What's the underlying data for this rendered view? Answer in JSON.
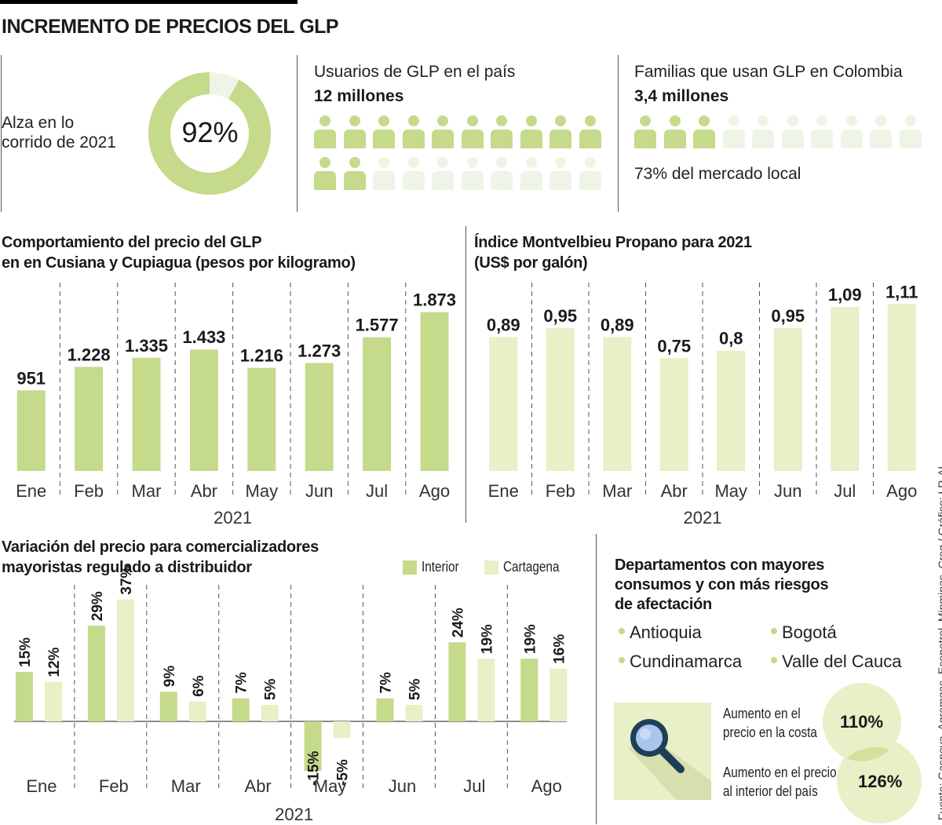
{
  "title": "INCREMENTO DE PRECIOS DEL GLP",
  "colors": {
    "green": "#c5da8a",
    "light_green": "#e9efc6",
    "faded": "#eef4e6",
    "text": "#1a1a1a"
  },
  "summary": {
    "alza": {
      "label_line1": "Alza en lo",
      "label_line2": "corrido de 2021",
      "value_text": "92%",
      "fraction": 0.92
    },
    "usuarios": {
      "label": "Usuarios de GLP en el país",
      "value": "12 millones",
      "icons_total": 20,
      "icons_filled": 12,
      "icon": "person-icon"
    },
    "familias": {
      "label": "Familias que usan GLP en Colombia",
      "value": "3,4 millones",
      "icons_total": 10,
      "icons_filled": 3,
      "icon": "person-icon",
      "note": "73% del mercado local"
    }
  },
  "chart_data": [
    {
      "type": "bar",
      "title": "Comportamiento del precio del GLP en en Cusiana y Cupiagua (pesos por kilogramo)",
      "title_line1": "Comportamiento del precio del GLP",
      "title_line2": "en en Cusiana y Cupiagua (pesos por kilogramo)",
      "categories": [
        "Ene",
        "Feb",
        "Mar",
        "Abr",
        "May",
        "Jun",
        "Jul",
        "Ago"
      ],
      "values": [
        951,
        1228,
        1335,
        1433,
        1216,
        1273,
        1577,
        1873
      ],
      "labels": [
        "951",
        "1.228",
        "1.335",
        "1.433",
        "1.216",
        "1.273",
        "1.577",
        "1.873"
      ],
      "xlabel": "2021",
      "ylabel": "",
      "ylim": [
        0,
        2000
      ],
      "grid": "vertical-dashed-separators",
      "color": "#c5da8a"
    },
    {
      "type": "bar",
      "title": "Índice Montvelbieu Propano para 2021 (US$ por galón)",
      "title_line1": "Índice Montvelbieu Propano para 2021",
      "title_line2": "(US$ por galón)",
      "categories": [
        "Ene",
        "Feb",
        "Mar",
        "Abr",
        "May",
        "Jun",
        "Jul",
        "Ago"
      ],
      "values": [
        0.89,
        0.95,
        0.89,
        0.75,
        0.8,
        0.95,
        1.09,
        1.11
      ],
      "labels": [
        "0,89",
        "0,95",
        "0,89",
        "0,75",
        "0,8",
        "0,95",
        "1,09",
        "1,11"
      ],
      "xlabel": "2021",
      "ylabel": "",
      "ylim": [
        0,
        1.2
      ],
      "grid": "vertical-dashed-separators",
      "color": "#e9efc6"
    },
    {
      "type": "bar",
      "title": "Variación del precio para comercializadores mayoristas regulado a distribuidor",
      "title_line1": "Variación del precio para comercializadores",
      "title_line2": "mayoristas regulado a distribuidor",
      "categories": [
        "Ene",
        "Feb",
        "Mar",
        "Abr",
        "May",
        "Jun",
        "Jul",
        "Ago"
      ],
      "series": [
        {
          "name": "Interior",
          "values": [
            15,
            29,
            9,
            7,
            -15,
            7,
            24,
            19
          ],
          "labels": [
            "15%",
            "29%",
            "9%",
            "7%",
            "-15%",
            "7%",
            "24%",
            "19%"
          ],
          "color": "#c5da8a"
        },
        {
          "name": "Cartagena",
          "values": [
            12,
            37,
            6,
            5,
            -5,
            5,
            19,
            16
          ],
          "labels": [
            "12%",
            "37%",
            "6%",
            "5%",
            "-5%",
            "5%",
            "19%",
            "16%"
          ],
          "color": "#e9efc6"
        }
      ],
      "xlabel": "2021",
      "ylabel": "",
      "ylim": [
        -15,
        37
      ],
      "legend": "top-right",
      "grid": "vertical-dashed-separators"
    }
  ],
  "departamentos": {
    "title_line1": "Departamentos con mayores",
    "title_line2": "consumos y con más riesgos",
    "title_line3": "de afectación",
    "items": [
      "Antioquia",
      "Bogotá",
      "Cundinamarca",
      "Valle del Cauca"
    ],
    "icon": "magnifier-icon",
    "costa": {
      "line1": "Aumento en el",
      "line2": "precio en la costa",
      "value": "110%"
    },
    "interior": {
      "line1": "Aumento en el precio",
      "line2": "al interior del país",
      "value": "126%"
    }
  },
  "source": "Fuente: Gasnova, Agremgas, Ecopetrol, Minminas, Creg / Gráfico: LR-AL"
}
